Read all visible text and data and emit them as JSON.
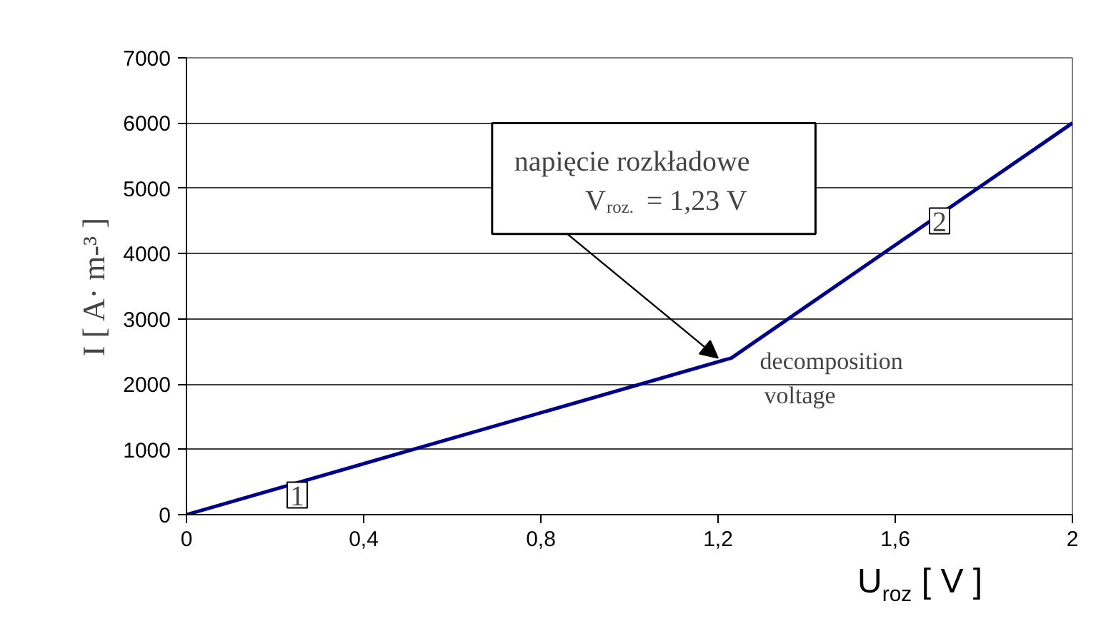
{
  "chart_data": {
    "type": "line",
    "xlabel": "U$_{roz}$ [ V ]",
    "ylabel": "I [ A· m-³ ]",
    "x": [
      0,
      1.23,
      2
    ],
    "series": [
      {
        "color": "#00008b",
        "values": [
          0,
          2400,
          6000
        ]
      }
    ],
    "xlim": [
      0,
      2
    ],
    "ylim": [
      0,
      7000
    ],
    "xticks": [
      0,
      {
        "value": 0.4,
        "label": "0,4"
      },
      {
        "value": 0.8,
        "label": "0,8"
      },
      {
        "value": 1.2,
        "label": "1,2"
      },
      {
        "value": 1.6,
        "label": "1,6"
      },
      2
    ],
    "yticks": [
      0,
      1000,
      2000,
      3000,
      4000,
      5000,
      6000,
      7000
    ],
    "grid": "y",
    "marker": "none",
    "line_style": "solid",
    "annotations": [
      {
        "text": "napięcie rozkładowe\nV$_{roz.}$ = 1,23 V",
        "x": 1.2,
        "y": 2400
      },
      {
        "text": "decomposition\nvoltage",
        "x": 1.23,
        "y": 2400
      },
      {
        "text": "1",
        "x": 0.25,
        "y": 300
      },
      {
        "text": "2",
        "x": 1.7,
        "y": 4500
      }
    ]
  }
}
